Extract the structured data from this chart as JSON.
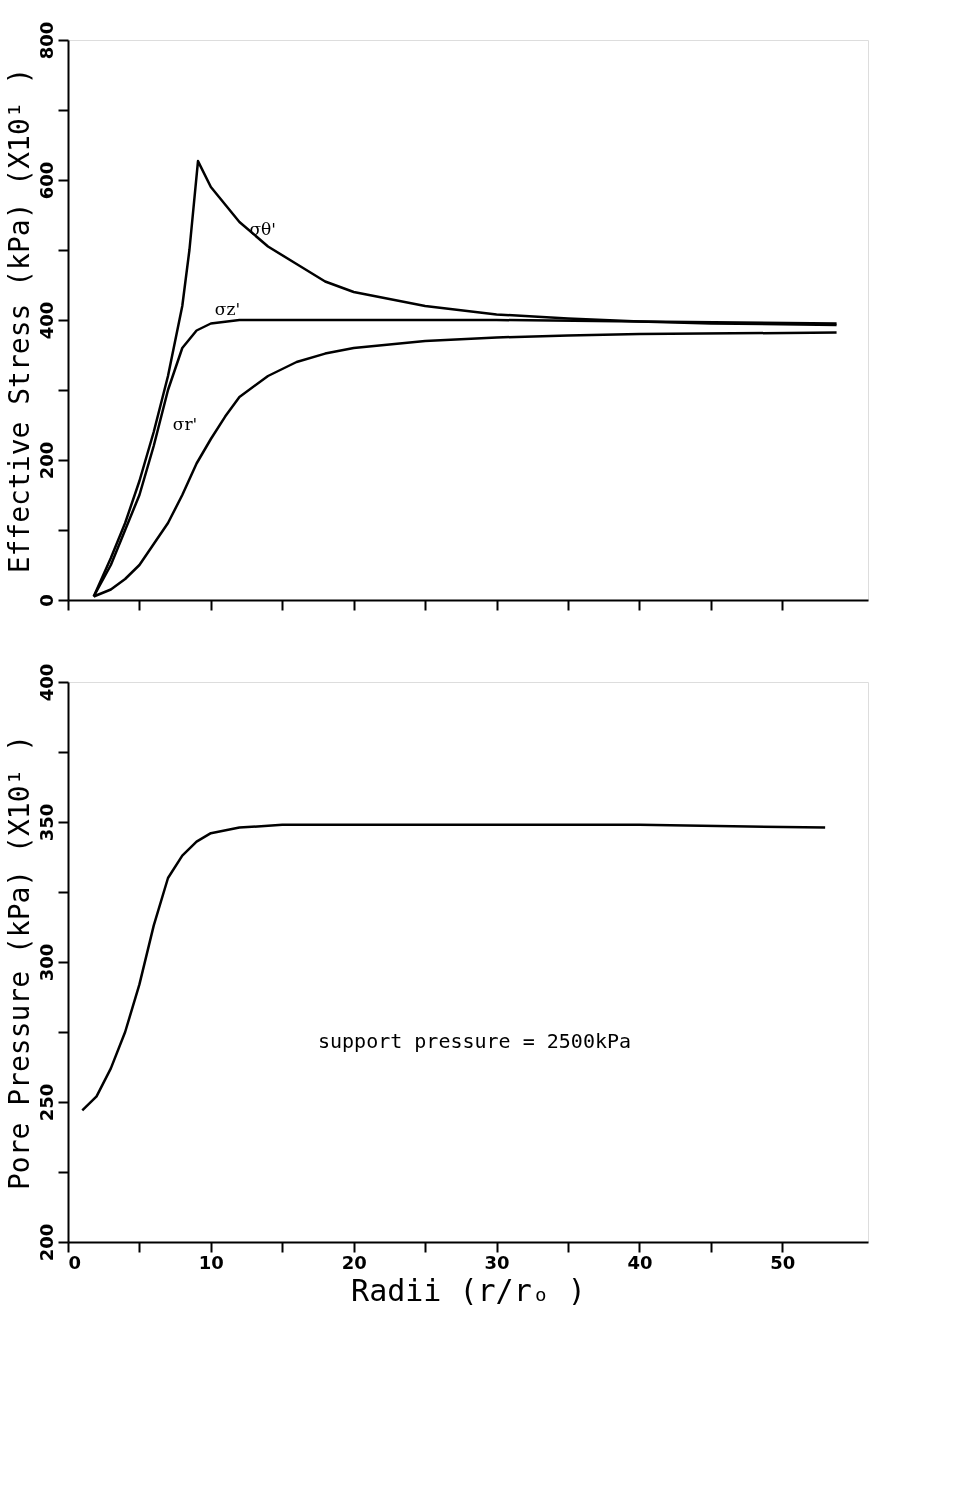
{
  "chart_data": [
    {
      "type": "line",
      "ylabel": "Effective Stress (kPa) (X10¹ )",
      "xlim": [
        0,
        56
      ],
      "ylim": [
        0,
        800
      ],
      "tick_labels": "y",
      "grid": false,
      "xticks": [
        {
          "value": 0,
          "label": null
        },
        {
          "value": 5,
          "label": null
        },
        {
          "value": 10,
          "label": null
        },
        {
          "value": 15,
          "label": null
        },
        {
          "value": 20,
          "label": null
        },
        {
          "value": 25,
          "label": null
        },
        {
          "value": 30,
          "label": null
        },
        {
          "value": 35,
          "label": null
        },
        {
          "value": 40,
          "label": null
        },
        {
          "value": 45,
          "label": null
        },
        {
          "value": 50,
          "label": null
        }
      ],
      "yticks": [
        0,
        {
          "value": 100,
          "label": null
        },
        200,
        {
          "value": 300,
          "label": null
        },
        400,
        {
          "value": 500,
          "label": null
        },
        600,
        {
          "value": 700,
          "label": null
        },
        800
      ],
      "series": [
        {
          "name": "σθ'",
          "color": "#000000",
          "x": [
            1.8,
            3,
            4,
            5,
            6,
            7,
            8,
            8.5,
            9.1,
            10,
            12,
            14,
            16,
            18,
            20,
            25,
            30,
            35,
            40,
            45,
            53.8
          ],
          "values": [
            5,
            60,
            110,
            170,
            240,
            320,
            420,
            500,
            627,
            590,
            540,
            505,
            480,
            455,
            440,
            420,
            408,
            402,
            398,
            395,
            393
          ]
        },
        {
          "name": "σz'",
          "color": "#000000",
          "x": [
            1.8,
            3,
            4,
            5,
            6,
            7,
            8,
            9,
            10,
            12,
            15,
            20,
            30,
            40,
            53.8
          ],
          "values": [
            5,
            50,
            100,
            150,
            220,
            300,
            360,
            385,
            395,
            400,
            400,
            400,
            400,
            398,
            395
          ]
        },
        {
          "name": "σr'",
          "color": "#000000",
          "x": [
            1.8,
            3,
            4,
            5,
            6,
            7,
            8,
            9,
            10,
            11,
            12,
            14,
            16,
            18,
            20,
            25,
            30,
            35,
            40,
            53.8
          ],
          "values": [
            5,
            15,
            30,
            50,
            80,
            110,
            150,
            195,
            230,
            262,
            290,
            320,
            340,
            352,
            360,
            370,
            375,
            378,
            380,
            382
          ]
        }
      ]
    },
    {
      "type": "line",
      "ylabel": "Pore Pressure (kPa) (X10¹ )",
      "xlabel": "Radii (r/rₒ )",
      "xlim": [
        0,
        56
      ],
      "ylim": [
        200,
        400
      ],
      "grid": false,
      "xticks": [
        0,
        {
          "value": 5,
          "label": null
        },
        10,
        {
          "value": 15,
          "label": null
        },
        20,
        {
          "value": 25,
          "label": null
        },
        30,
        {
          "value": 35,
          "label": null
        },
        40,
        {
          "value": 45,
          "label": null
        },
        50
      ],
      "yticks": [
        200,
        {
          "value": 225,
          "label": null
        },
        250,
        {
          "value": 275,
          "label": null
        },
        300,
        {
          "value": 325,
          "label": null
        },
        350,
        {
          "value": 375,
          "label": null
        },
        400
      ],
      "series": [
        {
          "color": "#000000",
          "x": [
            1,
            2,
            3,
            4,
            5,
            6,
            7,
            8,
            9,
            10,
            12,
            15,
            20,
            30,
            40,
            53
          ],
          "values": [
            247,
            252,
            262,
            275,
            292,
            313,
            330,
            338,
            343,
            346,
            348,
            349,
            349,
            349,
            349,
            348
          ]
        }
      ],
      "annotations": [
        "support pressure = 2500kPa"
      ]
    }
  ]
}
